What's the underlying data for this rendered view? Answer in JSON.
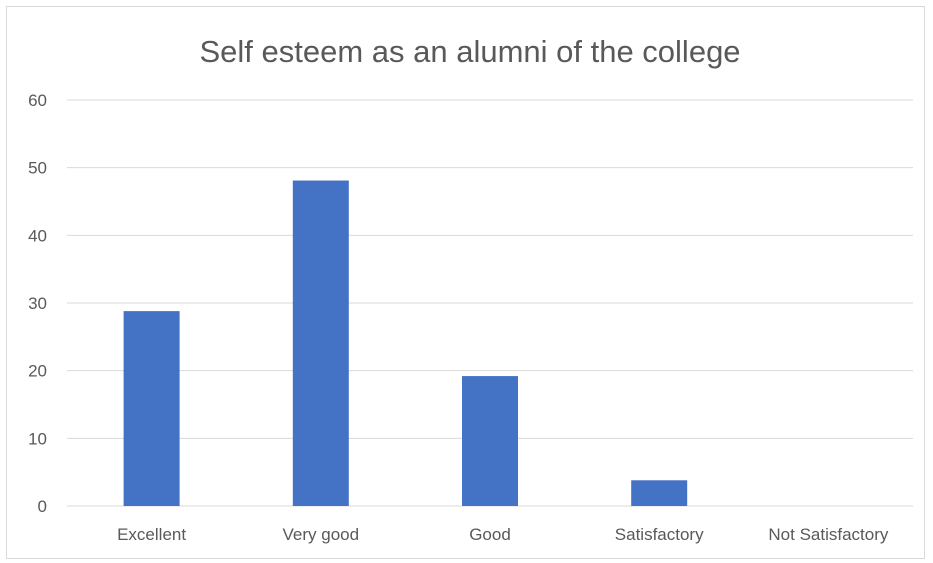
{
  "chart_data": {
    "type": "bar",
    "title": "Self esteem as an alumni of the college",
    "categories": [
      "Excellent",
      "Very good",
      "Good",
      "Satisfactory",
      "Not Satisfactory"
    ],
    "values": [
      28.8,
      48.1,
      19.2,
      3.8,
      0
    ],
    "ylim": [
      0,
      60
    ],
    "yticks": [
      0,
      10,
      20,
      30,
      40,
      50,
      60
    ],
    "xlabel": "",
    "ylabel": "",
    "grid": true,
    "colors": {
      "bar": "#4472c4",
      "grid": "#d9d9d9",
      "text": "#595959"
    }
  }
}
